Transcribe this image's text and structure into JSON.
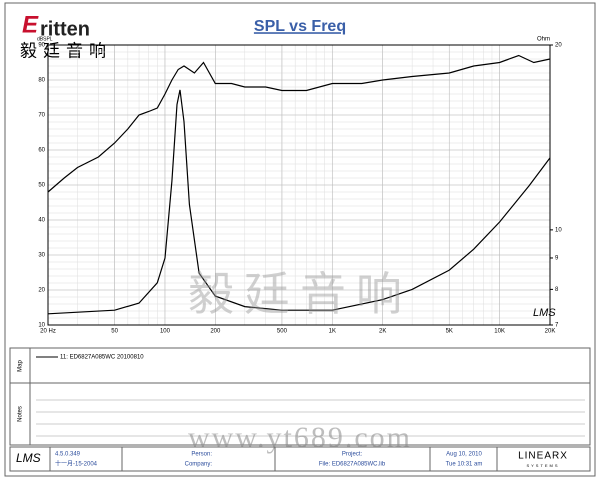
{
  "brand": {
    "logo": "ritten",
    "logo_initial": "E",
    "chinese": "毅廷音响"
  },
  "chart_data": {
    "type": "line",
    "title": "SPL vs Freq",
    "y_label": "dBSPL",
    "y2_label": "Ohm",
    "xlim": [
      20,
      20000
    ],
    "xscale": "log",
    "xticks": [
      {
        "value": 20,
        "label": "20 Hz"
      },
      50,
      100,
      200,
      500,
      {
        "value": 1000,
        "label": "1K"
      },
      {
        "value": 2000,
        "label": "2K"
      },
      {
        "value": 5000,
        "label": "5K"
      },
      {
        "value": 10000,
        "label": "10K"
      },
      {
        "value": 20000,
        "label": "20K"
      }
    ],
    "ylim": [
      10,
      90
    ],
    "yticks": [
      10,
      20,
      30,
      40,
      50,
      60,
      70,
      80,
      90
    ],
    "y2lim": [
      7,
      20
    ],
    "y2scale": "log",
    "y2ticks": [
      7,
      8,
      9,
      10,
      20
    ],
    "grid": true,
    "plot_mark": "LMS",
    "series": [
      {
        "name": "11: ED6827A085WC  20100810",
        "color": "#000000",
        "x": [
          20,
          25,
          30,
          40,
          50,
          60,
          70,
          80,
          90,
          100,
          110,
          120,
          130,
          150,
          170,
          200,
          250,
          300,
          400,
          500,
          700,
          1000,
          1500,
          2000,
          3000,
          5000,
          7000,
          10000,
          13000,
          16000,
          20000
        ],
        "values": [
          48,
          52,
          55,
          58,
          62,
          66,
          70,
          71,
          72,
          76,
          80,
          83,
          84,
          82,
          85,
          79,
          79,
          78,
          78,
          77,
          77,
          79,
          79,
          80,
          81,
          82,
          84,
          85,
          87,
          85,
          86
        ]
      },
      {
        "axis": "y2",
        "color": "#000000",
        "x": [
          20,
          50,
          70,
          90,
          100,
          110,
          118,
          123,
          130,
          140,
          160,
          200,
          300,
          500,
          1000,
          2000,
          3000,
          5000,
          7000,
          10000,
          15000,
          20000
        ],
        "values": [
          7.3,
          7.4,
          7.6,
          8.2,
          9,
          12,
          16,
          16.9,
          15,
          11,
          8.5,
          7.8,
          7.5,
          7.4,
          7.4,
          7.7,
          8,
          8.6,
          9.3,
          10.3,
          11.8,
          13.1
        ]
      }
    ]
  },
  "panels": {
    "map": "Map",
    "notes": "Notes"
  },
  "watermark": {
    "chinese": "毅廷音响",
    "url": "www.yt689.com"
  },
  "footer": {
    "logo": "LMS",
    "version": "4.5.0.349",
    "date": "十一月-15-2004",
    "person": "Person:",
    "company": "Company:",
    "project": "Project:",
    "file": "File: ED6827A085WC.lib",
    "run_date": "Aug 10, 2010",
    "run_time": "Tue 10:31 am",
    "vendor": "LINEARX",
    "vendor_sub": "SYSTEMS"
  }
}
